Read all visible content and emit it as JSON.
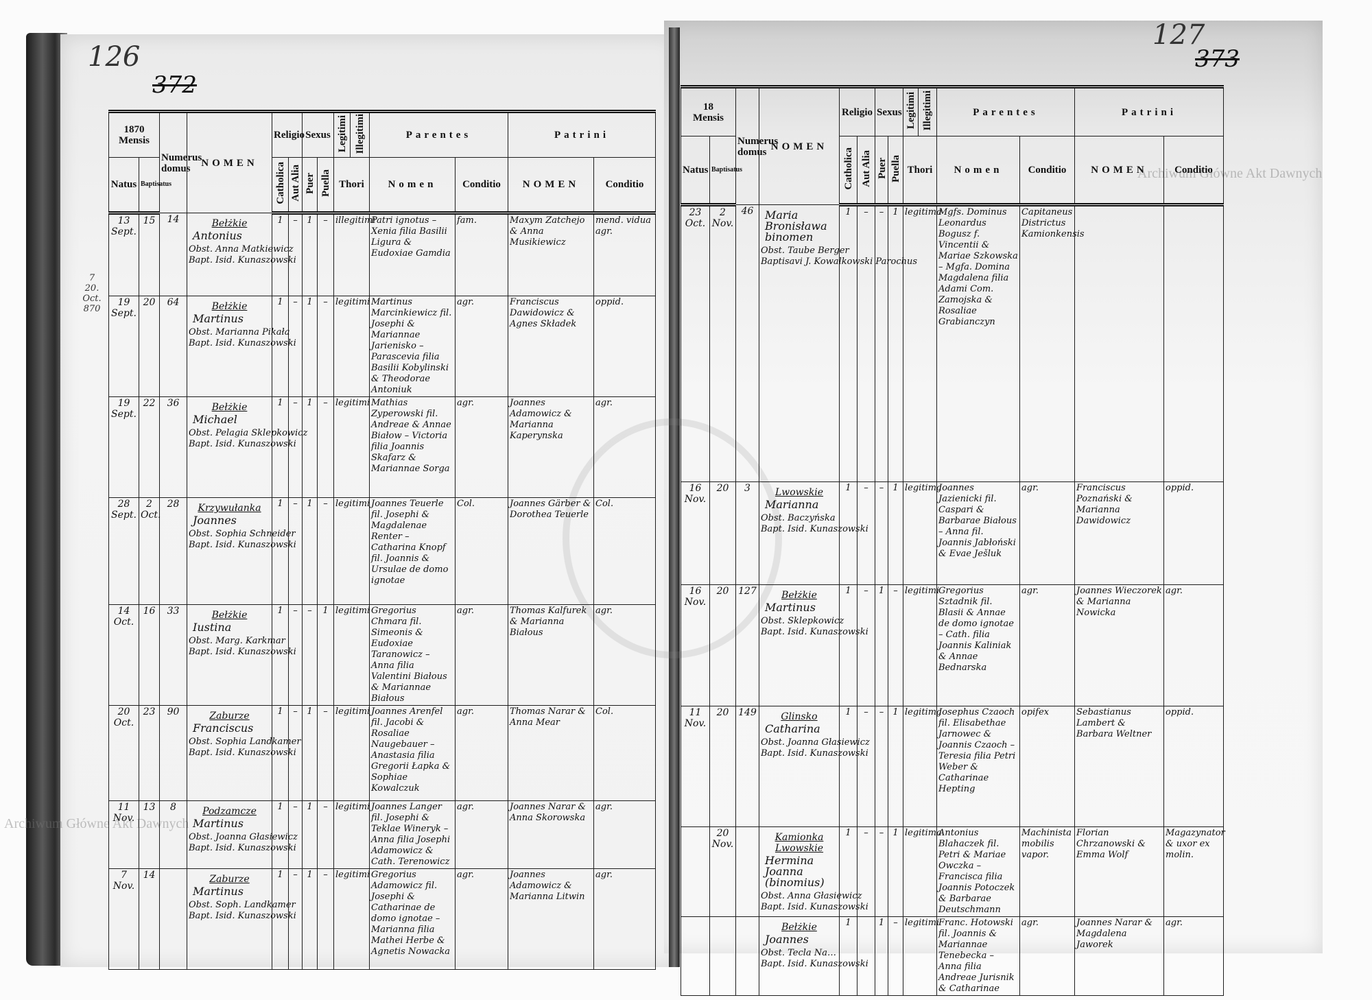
{
  "left_page": {
    "folio_number": "126",
    "page_number": "372",
    "margin_note": [
      "7",
      "20. Oct.",
      "870"
    ],
    "header": {
      "year": "1870",
      "mensis": "Mensis",
      "natus": "Natus",
      "baptisatus": "Baptisatus",
      "numerus_domus": "Numerus domus",
      "nomen": "NOMEN",
      "religio": "Religio",
      "catholica": "Catholica",
      "aut_alia": "Aut Alia",
      "sexus": "Sexus",
      "puer": "Puer",
      "puella": "Puella",
      "legitimi": "Legitimi",
      "illegitimi": "Illegitimi",
      "thori": "Thori",
      "parentes": "Parentes",
      "parentes_nomen": "Nomen",
      "parentes_conditio": "Conditio",
      "patrini": "Patrini",
      "patrini_nomen": "NOMEN",
      "patrini_conditio": "Conditio"
    },
    "entries": [
      {
        "natus": "13 Sept.",
        "baptisatus": "15",
        "domus": "14",
        "village": "Bełżkie",
        "nomen": "Antonius",
        "obstetrix": "Obst. Anna Matkiewicz",
        "baptizans": "Bapt. Isid. Kunaszowski",
        "catholica": "1",
        "aut_alia": "–",
        "puer": "1",
        "puella": "–",
        "thori": "illegitimi",
        "parentes_nomen": "Patri ignotus – Xenia filia Basilii Ligura & Eudoxiae Gamdia",
        "parentes_conditio": "fam.",
        "patrini_nomen": "Maxym Zatchejo & Anna Musikiewicz",
        "patrini_conditio": "mend. vidua agr."
      },
      {
        "natus": "19 Sept.",
        "baptisatus": "20",
        "domus": "64",
        "village": "Bełżkie",
        "nomen": "Martinus",
        "obstetrix": "Obst. Marianna Pikała",
        "baptizans": "Bapt. Isid. Kunaszowski",
        "catholica": "1",
        "aut_alia": "–",
        "puer": "1",
        "puella": "–",
        "thori": "legitimi",
        "parentes_nomen": "Martinus Marcinkiewicz fil. Josephi & Mariannae Jarienisko – Parascevia filia Basilii Kobylinski & Theodorae Antoniuk",
        "parentes_conditio": "agr.",
        "patrini_nomen": "Franciscus Dawidowicz & Agnes Składek",
        "patrini_conditio": "oppid."
      },
      {
        "natus": "19 Sept.",
        "baptisatus": "22",
        "domus": "36",
        "village": "Bełżkie",
        "nomen": "Michael",
        "obstetrix": "Obst. Pelagia Sklepkowicz",
        "baptizans": "Bapt. Isid. Kunaszowski",
        "catholica": "1",
        "aut_alia": "–",
        "puer": "1",
        "puella": "–",
        "thori": "legitimi",
        "parentes_nomen": "Mathias Zyperowski fil. Andreae & Annae Białow – Victoria filia Joannis Skafarz & Mariannae Sorga",
        "parentes_conditio": "agr.",
        "patrini_nomen": "Joannes Adamowicz & Marianna Kaperynska",
        "patrini_conditio": "agr."
      },
      {
        "natus": "28 Sept.",
        "baptisatus": "2 Oct.",
        "domus": "28",
        "village": "Krzywułanka",
        "nomen": "Joannes",
        "obstetrix": "Obst. Sophia Schneider",
        "baptizans": "Bapt. Isid. Kunaszowski",
        "catholica": "1",
        "aut_alia": "–",
        "puer": "1",
        "puella": "–",
        "thori": "legitimi",
        "parentes_nomen": "Joannes Teuerle fil. Josephi & Magdalenae Renter – Catharina Knopf fil. Joannis & Ursulae de domo ignotae",
        "parentes_conditio": "Col.",
        "patrini_nomen": "Joannes Gärber & Dorothea Teuerle",
        "patrini_conditio": "Col."
      },
      {
        "natus": "14 Oct.",
        "baptisatus": "16",
        "domus": "33",
        "village": "Bełżkie",
        "nomen": "Iustina",
        "obstetrix": "Obst. Marg. Karkmar",
        "baptizans": "Bapt. Isid. Kunaszowski",
        "catholica": "1",
        "aut_alia": "–",
        "puer": "–",
        "puella": "1",
        "thori": "legitimi",
        "parentes_nomen": "Gregorius Chmara fil. Simeonis & Eudoxiae Taranowicz – Anna filia Valentini Białous & Mariannae Białous",
        "parentes_conditio": "agr.",
        "patrini_nomen": "Thomas Kalfurek & Marianna Białous",
        "patrini_conditio": "agr."
      },
      {
        "natus": "20 Oct.",
        "baptisatus": "23",
        "domus": "90",
        "village": "Zaburze",
        "nomen": "Franciscus",
        "obstetrix": "Obst. Sophia Landkamer",
        "baptizans": "Bapt. Isid. Kunaszowski",
        "catholica": "1",
        "aut_alia": "–",
        "puer": "1",
        "puella": "–",
        "thori": "legitimi",
        "parentes_nomen": "Joannes Arenfel fil. Jacobi & Rosaliae Naugebauer – Anastasia filia Gregorii Łapka & Sophiae Kowalczuk",
        "parentes_conditio": "agr.",
        "patrini_nomen": "Thomas Narar & Anna Mear",
        "patrini_conditio": "Col."
      },
      {
        "natus": "11 Nov.",
        "baptisatus": "13",
        "domus": "8",
        "village": "Podzamcze",
        "nomen": "Martinus",
        "obstetrix": "Obst. Joanna Głasiewicz",
        "baptizans": "Bapt. Isid. Kunaszowski",
        "catholica": "1",
        "aut_alia": "–",
        "puer": "1",
        "puella": "–",
        "thori": "legitimi",
        "parentes_nomen": "Joannes Langer fil. Josephi & Teklae Wineryk – Anna filia Josephi Adamowicz & Cath. Terenowicz",
        "parentes_conditio": "agr.",
        "patrini_nomen": "Joannes Narar & Anna Skorowska",
        "patrini_conditio": "agr."
      },
      {
        "natus": "7 Nov.",
        "baptisatus": "14",
        "domus": "",
        "village": "Zaburze",
        "nomen": "Martinus",
        "obstetrix": "Obst. Soph. Landkamer",
        "baptizans": "Bapt. Isid. Kunaszowski",
        "catholica": "1",
        "aut_alia": "–",
        "puer": "1",
        "puella": "–",
        "thori": "legitimi",
        "parentes_nomen": "Gregorius Adamowicz fil. Josephi & Catharinae de domo ignotae – Marianna filia Mathei Herbe & Agnetis Nowacka",
        "parentes_conditio": "agr.",
        "patrini_nomen": "Joannes Adamowicz & Marianna Litwin",
        "patrini_conditio": "agr."
      }
    ]
  },
  "right_page": {
    "folio_number": "127",
    "page_number": "373",
    "header": {
      "year": "18",
      "mensis": "Mensis",
      "natus": "Natus",
      "baptisatus": "Baptisatus",
      "numerus_domus": "Numerus domus",
      "nomen": "NOMEN",
      "religio": "Religio",
      "catholica": "Catholica",
      "aut_alia": "Aut Alia",
      "sexus": "Sexus",
      "puer": "Puer",
      "puella": "Puella",
      "legitimi": "Legitimi",
      "illegitimi": "Illegitimi",
      "thori": "Thori",
      "parentes": "Parentes",
      "parentes_nomen": "Nomen",
      "parentes_conditio": "Conditio",
      "patrini": "Patrini",
      "patrini_nomen": "NOMEN",
      "patrini_conditio": "Conditio"
    },
    "entries": [
      {
        "natus": "23 Oct.",
        "baptisatus": "2 Nov.",
        "domus": "46",
        "village": "",
        "nomen": "Maria Bronisława binomen",
        "obstetrix": "Obst. Taube Berger",
        "baptizans": "Baptisavi J. Kowalkowski Parochus",
        "catholica": "1",
        "aut_alia": "–",
        "puer": "–",
        "puella": "1",
        "thori": "legitima",
        "parentes_nomen": "Mgfs. Dominus Leonardus Bogusz f. Vincentii & Mariae Szkowska – Mgfa. Domina Magdalena filia Adami Com. Zamojska & Rosaliae Grabianczyn",
        "parentes_conditio": "Capitaneus Districtus Kamionkensis",
        "patrini_nomen": "",
        "patrini_conditio": ""
      },
      {
        "natus": "16 Nov.",
        "baptisatus": "20",
        "domus": "3",
        "village": "Lwowskie",
        "nomen": "Marianna",
        "obstetrix": "Obst. Baczyńska",
        "baptizans": "Bapt. Isid. Kunaszowski",
        "catholica": "1",
        "aut_alia": "–",
        "puer": "–",
        "puella": "1",
        "thori": "legitima",
        "parentes_nomen": "Joannes Jazienicki fil. Caspari & Barbarae Białous – Anna fil. Joannis Jabłoński & Evae Ješluk",
        "parentes_conditio": "agr.",
        "patrini_nomen": "Franciscus Poznański & Marianna Dawidowicz",
        "patrini_conditio": "oppid."
      },
      {
        "natus": "16 Nov.",
        "baptisatus": "20",
        "domus": "127",
        "village": "Bełżkie",
        "nomen": "Martinus",
        "obstetrix": "Obst. Sklepkowicz",
        "baptizans": "Bapt. Isid. Kunaszowski",
        "catholica": "1",
        "aut_alia": "–",
        "puer": "1",
        "puella": "–",
        "thori": "legitimi",
        "parentes_nomen": "Gregorius Sztadnik fil. Blasii & Annae de domo ignotae – Cath. filia Joannis Kaliniak & Annae Bednarska",
        "parentes_conditio": "agr.",
        "patrini_nomen": "Joannes Wieczorek & Marianna Nowicka",
        "patrini_conditio": "agr."
      },
      {
        "natus": "11 Nov.",
        "baptisatus": "20",
        "domus": "149",
        "village": "Glinsko",
        "nomen": "Catharina",
        "obstetrix": "Obst. Joanna Głasiewicz",
        "baptizans": "Bapt. Isid. Kunaszowski",
        "catholica": "1",
        "aut_alia": "–",
        "puer": "–",
        "puella": "1",
        "thori": "legitima",
        "parentes_nomen": "Josephus Czaoch fil. Elisabethae Jarnowec & Joannis Czaoch – Teresia filia Petri Weber & Catharinae Hepting",
        "parentes_conditio": "opifex",
        "patrini_nomen": "Sebastianus Lambert & Barbara Weltner",
        "patrini_conditio": "oppid."
      },
      {
        "natus": "",
        "baptisatus": "20 Nov.",
        "domus": "",
        "village": "Kamionka Lwowskie",
        "nomen": "Hermina Joanna (binomius)",
        "obstetrix": "Obst. Anna Głasiewicz",
        "baptizans": "Bapt. Isid. Kunaszowski",
        "catholica": "1",
        "aut_alia": "–",
        "puer": "–",
        "puella": "1",
        "thori": "legitima",
        "parentes_nomen": "Antonius Blahaczek fil. Petri & Mariae Owczka – Francisca filia Joannis Potoczek & Barbarae Deutschmann",
        "parentes_conditio": "Machinista mobilis vapor.",
        "patrini_nomen": "Florian Chrzanowski & Emma Wolf",
        "patrini_conditio": "Magazynator & uxor ex molin."
      },
      {
        "natus": "",
        "baptisatus": "",
        "domus": "",
        "village": "Bełżkie",
        "nomen": "Joannes",
        "obstetrix": "Obst. Tecla Na…",
        "baptizans": "Bapt. Isid. Kunaszowski",
        "catholica": "1",
        "aut_alia": "",
        "puer": "1",
        "puella": "–",
        "thori": "legitimi",
        "parentes_nomen": "Franc. Hotowski fil. Joannis & Mariannae Tenebecka – Anna filia Andreae Jurisnik & Catharinae",
        "parentes_conditio": "agr.",
        "patrini_nomen": "Joannes Narar & Magdalena Jaworek",
        "patrini_conditio": "agr."
      }
    ]
  },
  "watermark": "Archiwum Główne Akt Dawnych",
  "colors": {
    "ink": "#111111",
    "paper": "#f2f2f2",
    "spine": "#333333"
  }
}
